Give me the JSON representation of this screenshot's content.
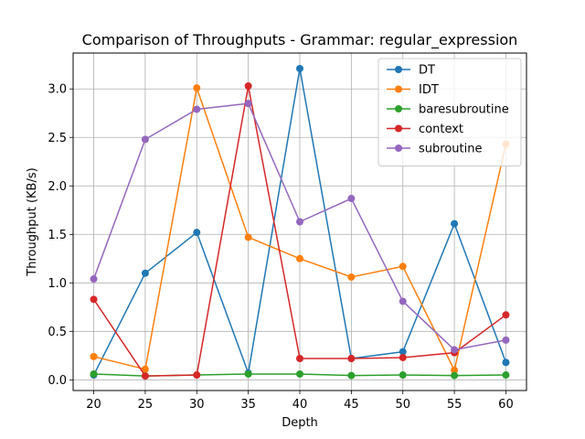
{
  "chart_data": {
    "type": "line",
    "title": "Comparison of Throughputs - Grammar: regular_expression",
    "xlabel": "Depth",
    "ylabel": "Throughput (KB/s)",
    "x": [
      20,
      25,
      30,
      35,
      40,
      45,
      50,
      55,
      60
    ],
    "xticks": [
      "20",
      "25",
      "30",
      "35",
      "40",
      "45",
      "50",
      "55",
      "60"
    ],
    "yticks": [
      "0.0",
      "0.5",
      "1.0",
      "1.5",
      "2.0",
      "2.5",
      "3.0"
    ],
    "xlim": [
      18,
      62
    ],
    "ylim": [
      -0.11,
      3.37
    ],
    "grid": true,
    "legend_position": "top-right",
    "series": [
      {
        "name": "DT",
        "color": "#1f77b4",
        "values": [
          0.05,
          1.1,
          1.52,
          0.07,
          3.21,
          0.22,
          0.29,
          1.61,
          0.18
        ]
      },
      {
        "name": "IDT",
        "color": "#ff7f0e",
        "values": [
          0.24,
          0.11,
          3.01,
          1.47,
          1.25,
          1.06,
          1.17,
          0.1,
          2.43
        ]
      },
      {
        "name": "baresubroutine",
        "color": "#2ca02c",
        "values": [
          0.06,
          0.04,
          0.05,
          0.06,
          0.06,
          0.045,
          0.05,
          0.045,
          0.05
        ]
      },
      {
        "name": "context",
        "color": "#d62728",
        "values": [
          0.83,
          0.04,
          0.05,
          3.03,
          0.22,
          0.22,
          0.23,
          0.28,
          0.67
        ]
      },
      {
        "name": "subroutine",
        "color": "#9467bd",
        "values": [
          1.04,
          2.48,
          2.79,
          2.85,
          1.63,
          1.87,
          0.81,
          0.31,
          0.41
        ]
      }
    ]
  }
}
